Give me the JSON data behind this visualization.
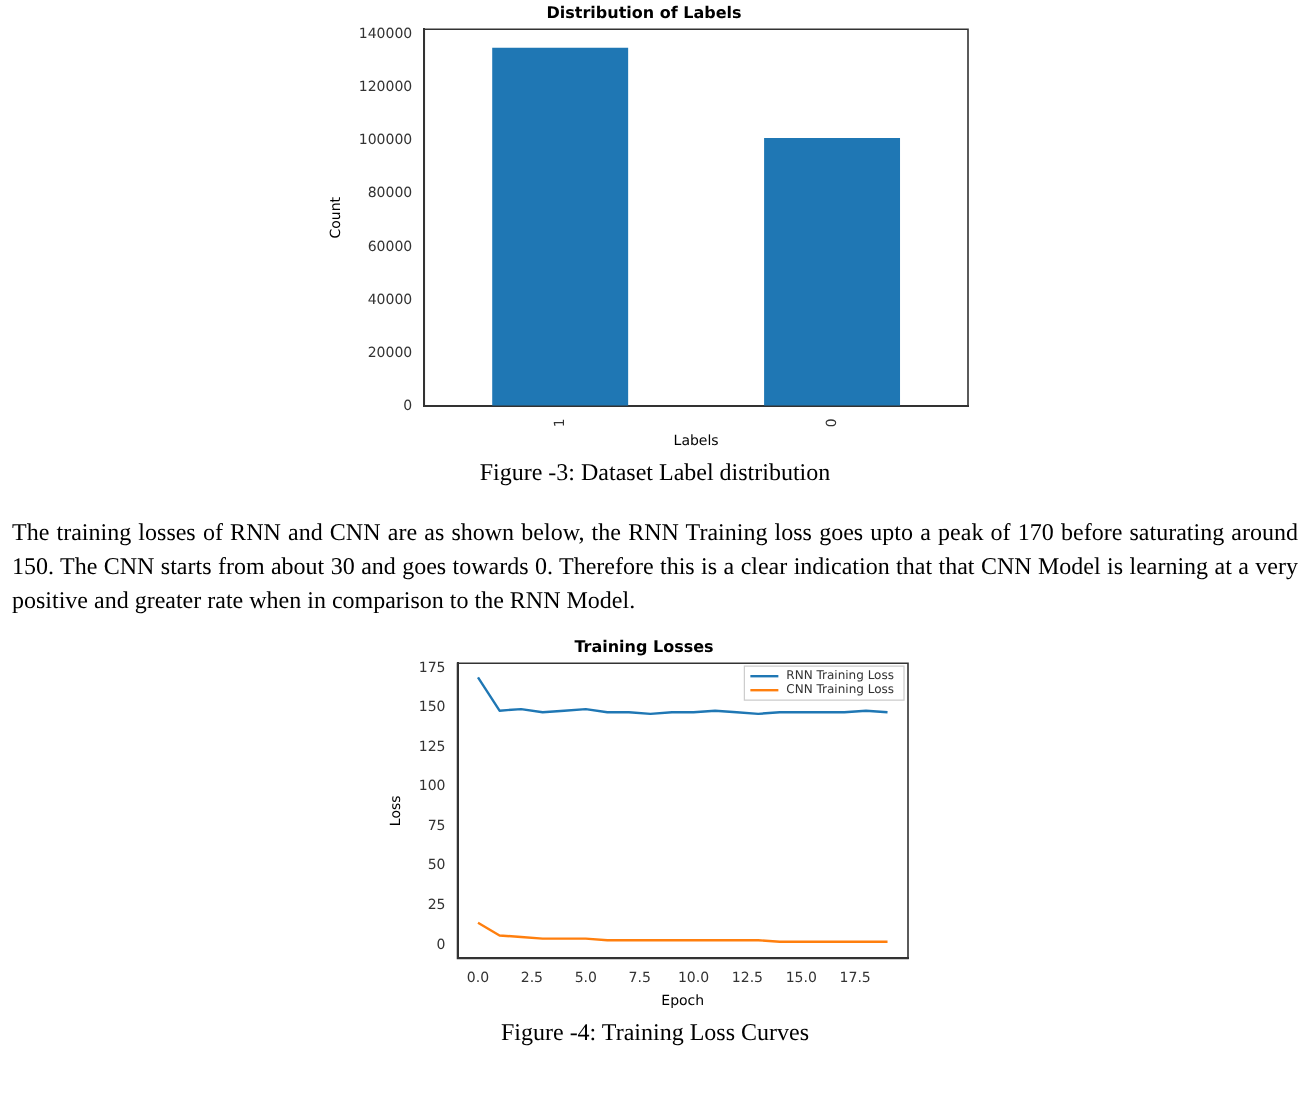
{
  "chart_data": [
    {
      "type": "bar",
      "title": "Distribution of Labels",
      "xlabel": "Labels",
      "ylabel": "Count",
      "categories": [
        "1",
        "0"
      ],
      "values": [
        135000,
        101000
      ],
      "color": "#1f77b4",
      "ylim": [
        0,
        142000
      ],
      "yticks": [
        0,
        20000,
        40000,
        60000,
        80000,
        100000,
        120000,
        140000
      ],
      "grid": false,
      "legend": false,
      "annotations": [
        "Figure -3: Dataset Label distribution"
      ]
    },
    {
      "type": "line",
      "title": "Training Losses",
      "xlabel": "Epoch",
      "ylabel": "Loss",
      "x": [
        0,
        1,
        2,
        3,
        4,
        5,
        6,
        7,
        8,
        9,
        10,
        11,
        12,
        13,
        14,
        15,
        16,
        17,
        18,
        19
      ],
      "series": [
        {
          "name": "RNN Training Loss",
          "color": "#1f77b4",
          "values": [
            169,
            148,
            149,
            147,
            148,
            149,
            147,
            147,
            146,
            147,
            147,
            148,
            147,
            146,
            147,
            147,
            147,
            147,
            148,
            147
          ]
        },
        {
          "name": "CNN Training Loss",
          "color": "#ff7f0e",
          "values": [
            14,
            6,
            5,
            4,
            4,
            4,
            3,
            3,
            3,
            3,
            3,
            3,
            3,
            3,
            2,
            2,
            2,
            2,
            2,
            2
          ]
        }
      ],
      "xlim": [
        -0.95,
        19.95
      ],
      "xticks": [
        {
          "value": 0,
          "label": "0.0"
        },
        {
          "value": 2.5,
          "label": "2.5"
        },
        {
          "value": 5,
          "label": "5.0"
        },
        {
          "value": 7.5,
          "label": "7.5"
        },
        {
          "value": 10,
          "label": "10.0"
        },
        {
          "value": 12.5,
          "label": "12.5"
        },
        {
          "value": 15,
          "label": "15.0"
        },
        {
          "value": 17.5,
          "label": "17.5"
        }
      ],
      "ylim": [
        -8.5,
        178
      ],
      "yticks": [
        0,
        25,
        50,
        75,
        100,
        125,
        150,
        175
      ],
      "grid": false,
      "legend": "top right",
      "annotations": [
        "The training losses of RNN and CNN are as shown below, the RNN Training loss goes upto a peak of 170 before saturating around 150. The CNN starts from about 30 and goes towards 0. Therefore this is a clear indication that that CNN Model is learning at a very positive and greater rate when in comparison to the RNN Model.",
        "Figure -4: Training Loss Curves"
      ]
    }
  ]
}
